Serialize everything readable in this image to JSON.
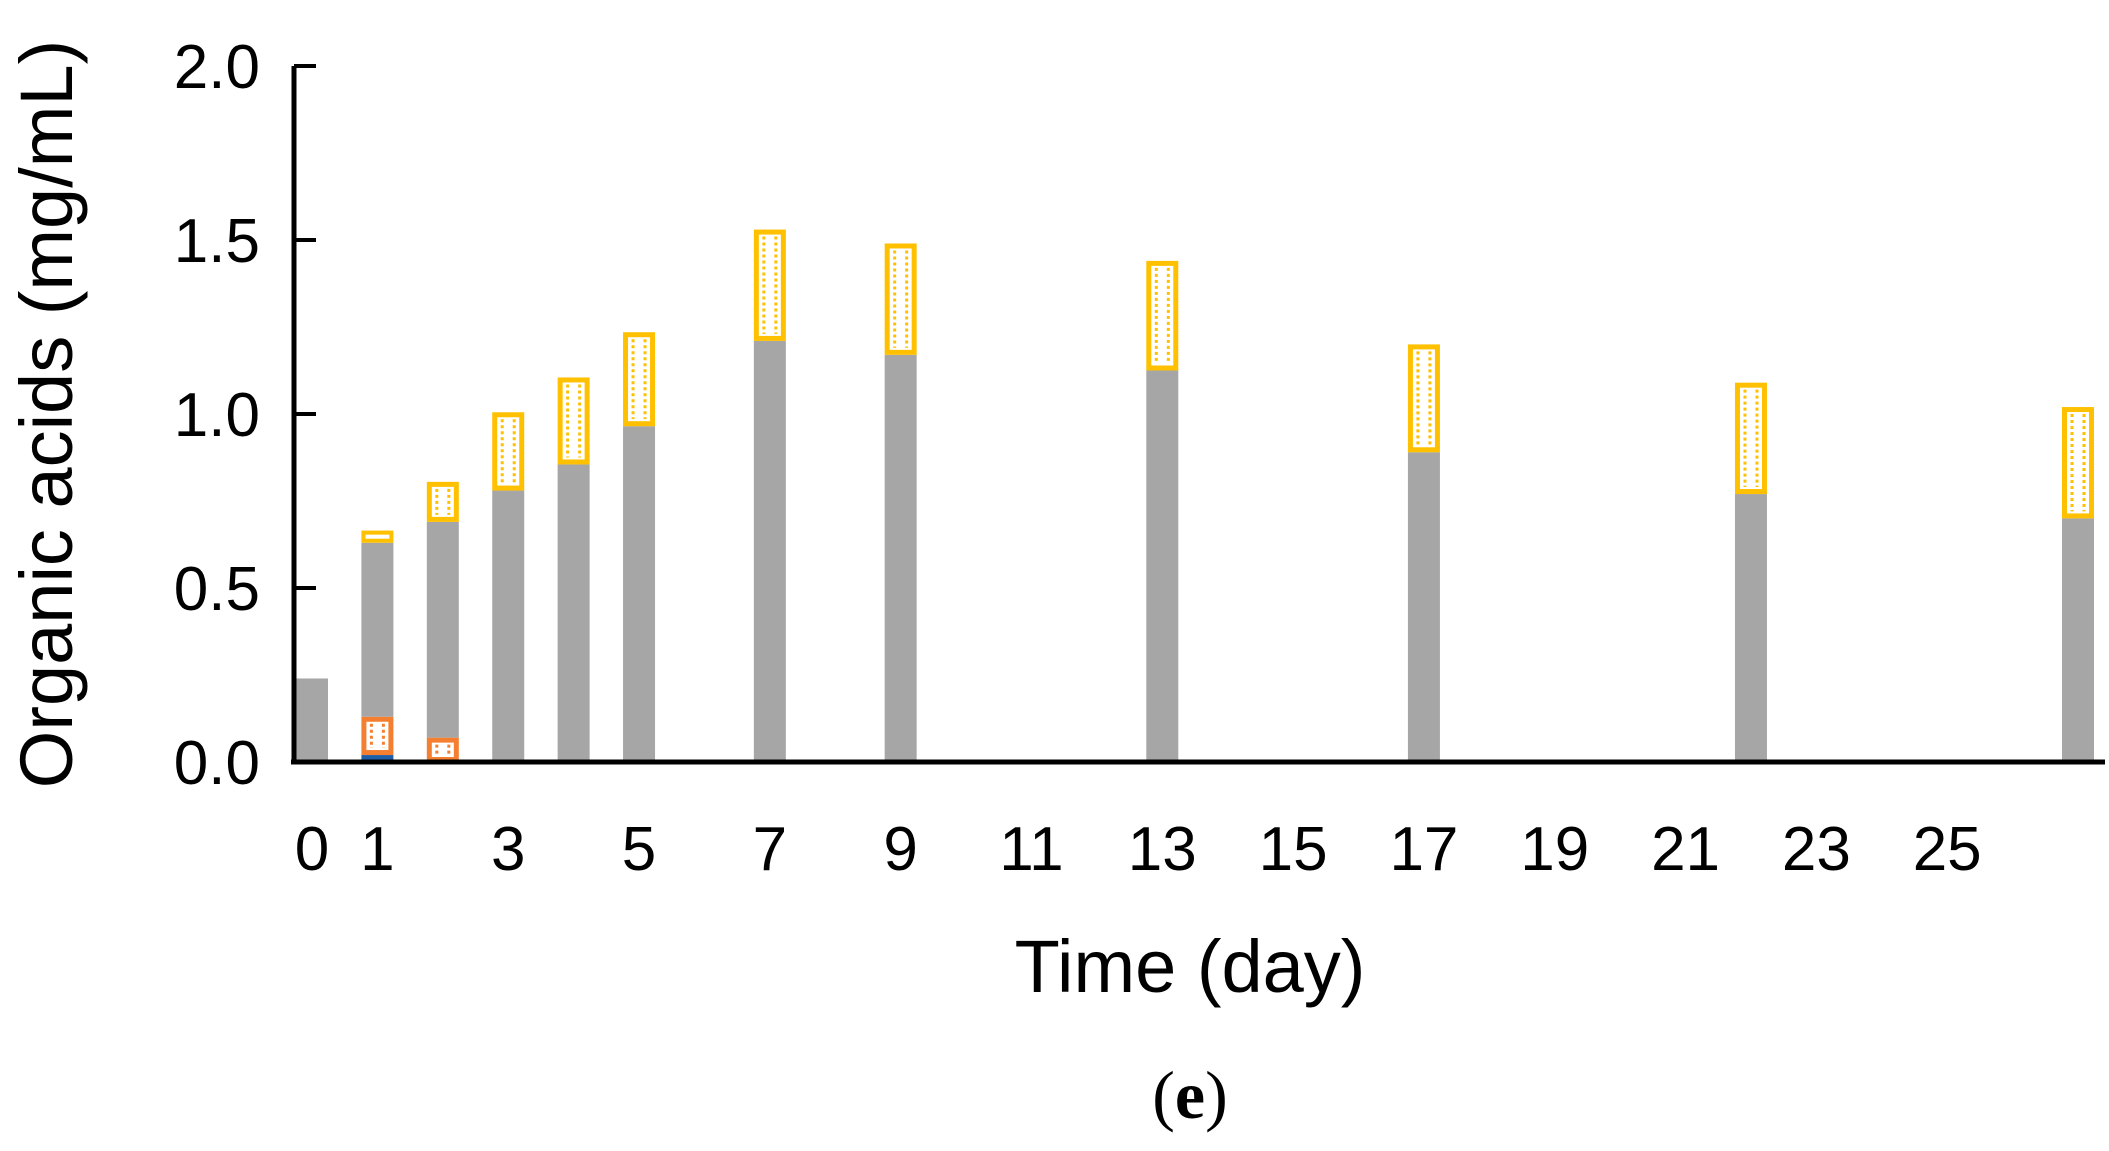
{
  "chart_data": {
    "type": "bar",
    "stacked": true,
    "xlabel": "Time (day)",
    "ylabel": "Organic acids (mg/mL)",
    "panel_label": "e",
    "ylim": [
      0,
      2.0
    ],
    "yticks": [
      "0.0",
      "0.5",
      "1.0",
      "1.5",
      "2.0"
    ],
    "xlim": [
      -0.5,
      27.5
    ],
    "xticks": [
      "0",
      "1",
      "3",
      "5",
      "7",
      "9",
      "11",
      "13",
      "15",
      "17",
      "19",
      "21",
      "23",
      "25"
    ],
    "x": [
      0,
      1,
      2,
      3,
      4,
      5,
      7,
      9,
      13,
      17,
      22,
      27
    ],
    "series": [
      {
        "color": "#1f5fa8",
        "style": "solid",
        "values": [
          0,
          0.02,
          0,
          0,
          0,
          0,
          0,
          0,
          0,
          0,
          0,
          0
        ]
      },
      {
        "color": "#f47f30",
        "style": "outlined-pattern",
        "values": [
          0.005,
          0.11,
          0.07,
          0,
          0,
          0,
          0.005,
          0.005,
          0.005,
          0.005,
          0.005,
          0.005
        ]
      },
      {
        "color": "#a6a6a6",
        "style": "solid",
        "values": [
          0.235,
          0.5,
          0.62,
          0.78,
          0.855,
          0.965,
          1.205,
          1.165,
          1.12,
          0.885,
          0.765,
          0.695
        ]
      },
      {
        "color": "#ffc000",
        "style": "outlined-pattern",
        "values": [
          0,
          0.035,
          0.115,
          0.225,
          0.25,
          0.27,
          0.32,
          0.32,
          0.315,
          0.31,
          0.32,
          0.32
        ]
      }
    ]
  }
}
